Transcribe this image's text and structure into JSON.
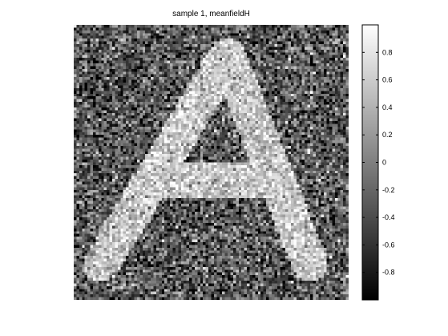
{
  "figure": {
    "title": "sample 1, meanfieldH"
  },
  "chart_data": {
    "type": "heatmap",
    "title": "sample 1, meanfieldH",
    "xlabel": "",
    "ylabel": "",
    "colormap": "gray",
    "clim": [
      -1,
      1
    ],
    "grid_size": [
      100,
      100
    ],
    "image_content": "noisy letter A",
    "background_mean": -0.3,
    "foreground_mean": 0.55,
    "colorbar": {
      "ticks": [
        0.8,
        0.6,
        0.4,
        0.2,
        0,
        -0.2,
        -0.4,
        -0.6,
        -0.8
      ],
      "tick_labels": [
        "0.8",
        "0.6",
        "0.4",
        "0.2",
        "0",
        "-0.2",
        "-0.4",
        "-0.6",
        "-0.8"
      ]
    }
  }
}
